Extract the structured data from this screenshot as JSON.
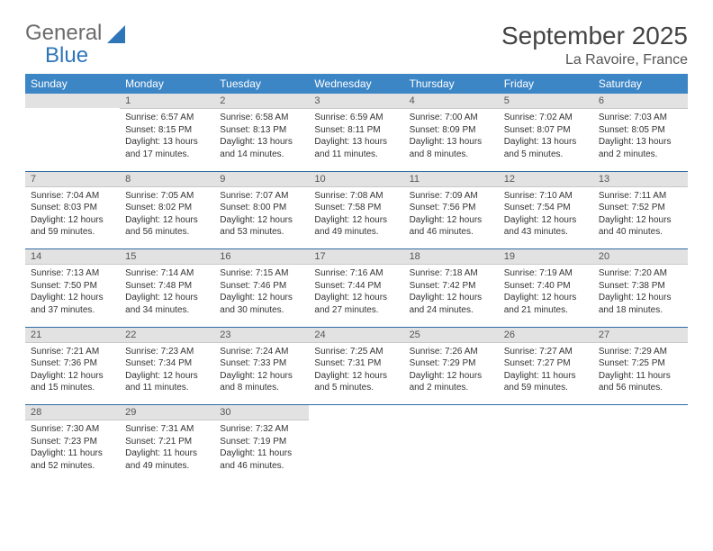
{
  "branding": {
    "logo_word1": "General",
    "logo_word2": "Blue",
    "logo_word1_color": "#6b6b6b",
    "logo_word2_color": "#2f76b9"
  },
  "title": "September 2025",
  "location": "La Ravoire, France",
  "colors": {
    "header_bg": "#3d86c6",
    "header_fg": "#ffffff",
    "daybar_bg": "#e2e2e2",
    "week_separator": "#2f6aa3",
    "background": "#ffffff"
  },
  "typography": {
    "title_fontsize": 28,
    "location_fontsize": 16,
    "weekday_fontsize": 12,
    "daynum_fontsize": 11,
    "body_fontsize": 10
  },
  "weekdays": [
    "Sunday",
    "Monday",
    "Tuesday",
    "Wednesday",
    "Thursday",
    "Friday",
    "Saturday"
  ],
  "start_offset": 1,
  "days": [
    {
      "n": 1,
      "sunrise": "6:57 AM",
      "sunset": "8:15 PM",
      "daylight": "13 hours and 17 minutes."
    },
    {
      "n": 2,
      "sunrise": "6:58 AM",
      "sunset": "8:13 PM",
      "daylight": "13 hours and 14 minutes."
    },
    {
      "n": 3,
      "sunrise": "6:59 AM",
      "sunset": "8:11 PM",
      "daylight": "13 hours and 11 minutes."
    },
    {
      "n": 4,
      "sunrise": "7:00 AM",
      "sunset": "8:09 PM",
      "daylight": "13 hours and 8 minutes."
    },
    {
      "n": 5,
      "sunrise": "7:02 AM",
      "sunset": "8:07 PM",
      "daylight": "13 hours and 5 minutes."
    },
    {
      "n": 6,
      "sunrise": "7:03 AM",
      "sunset": "8:05 PM",
      "daylight": "13 hours and 2 minutes."
    },
    {
      "n": 7,
      "sunrise": "7:04 AM",
      "sunset": "8:03 PM",
      "daylight": "12 hours and 59 minutes."
    },
    {
      "n": 8,
      "sunrise": "7:05 AM",
      "sunset": "8:02 PM",
      "daylight": "12 hours and 56 minutes."
    },
    {
      "n": 9,
      "sunrise": "7:07 AM",
      "sunset": "8:00 PM",
      "daylight": "12 hours and 53 minutes."
    },
    {
      "n": 10,
      "sunrise": "7:08 AM",
      "sunset": "7:58 PM",
      "daylight": "12 hours and 49 minutes."
    },
    {
      "n": 11,
      "sunrise": "7:09 AM",
      "sunset": "7:56 PM",
      "daylight": "12 hours and 46 minutes."
    },
    {
      "n": 12,
      "sunrise": "7:10 AM",
      "sunset": "7:54 PM",
      "daylight": "12 hours and 43 minutes."
    },
    {
      "n": 13,
      "sunrise": "7:11 AM",
      "sunset": "7:52 PM",
      "daylight": "12 hours and 40 minutes."
    },
    {
      "n": 14,
      "sunrise": "7:13 AM",
      "sunset": "7:50 PM",
      "daylight": "12 hours and 37 minutes."
    },
    {
      "n": 15,
      "sunrise": "7:14 AM",
      "sunset": "7:48 PM",
      "daylight": "12 hours and 34 minutes."
    },
    {
      "n": 16,
      "sunrise": "7:15 AM",
      "sunset": "7:46 PM",
      "daylight": "12 hours and 30 minutes."
    },
    {
      "n": 17,
      "sunrise": "7:16 AM",
      "sunset": "7:44 PM",
      "daylight": "12 hours and 27 minutes."
    },
    {
      "n": 18,
      "sunrise": "7:18 AM",
      "sunset": "7:42 PM",
      "daylight": "12 hours and 24 minutes."
    },
    {
      "n": 19,
      "sunrise": "7:19 AM",
      "sunset": "7:40 PM",
      "daylight": "12 hours and 21 minutes."
    },
    {
      "n": 20,
      "sunrise": "7:20 AM",
      "sunset": "7:38 PM",
      "daylight": "12 hours and 18 minutes."
    },
    {
      "n": 21,
      "sunrise": "7:21 AM",
      "sunset": "7:36 PM",
      "daylight": "12 hours and 15 minutes."
    },
    {
      "n": 22,
      "sunrise": "7:23 AM",
      "sunset": "7:34 PM",
      "daylight": "12 hours and 11 minutes."
    },
    {
      "n": 23,
      "sunrise": "7:24 AM",
      "sunset": "7:33 PM",
      "daylight": "12 hours and 8 minutes."
    },
    {
      "n": 24,
      "sunrise": "7:25 AM",
      "sunset": "7:31 PM",
      "daylight": "12 hours and 5 minutes."
    },
    {
      "n": 25,
      "sunrise": "7:26 AM",
      "sunset": "7:29 PM",
      "daylight": "12 hours and 2 minutes."
    },
    {
      "n": 26,
      "sunrise": "7:27 AM",
      "sunset": "7:27 PM",
      "daylight": "11 hours and 59 minutes."
    },
    {
      "n": 27,
      "sunrise": "7:29 AM",
      "sunset": "7:25 PM",
      "daylight": "11 hours and 56 minutes."
    },
    {
      "n": 28,
      "sunrise": "7:30 AM",
      "sunset": "7:23 PM",
      "daylight": "11 hours and 52 minutes."
    },
    {
      "n": 29,
      "sunrise": "7:31 AM",
      "sunset": "7:21 PM",
      "daylight": "11 hours and 49 minutes."
    },
    {
      "n": 30,
      "sunrise": "7:32 AM",
      "sunset": "7:19 PM",
      "daylight": "11 hours and 46 minutes."
    }
  ],
  "labels": {
    "sunrise": "Sunrise:",
    "sunset": "Sunset:",
    "daylight": "Daylight:"
  }
}
